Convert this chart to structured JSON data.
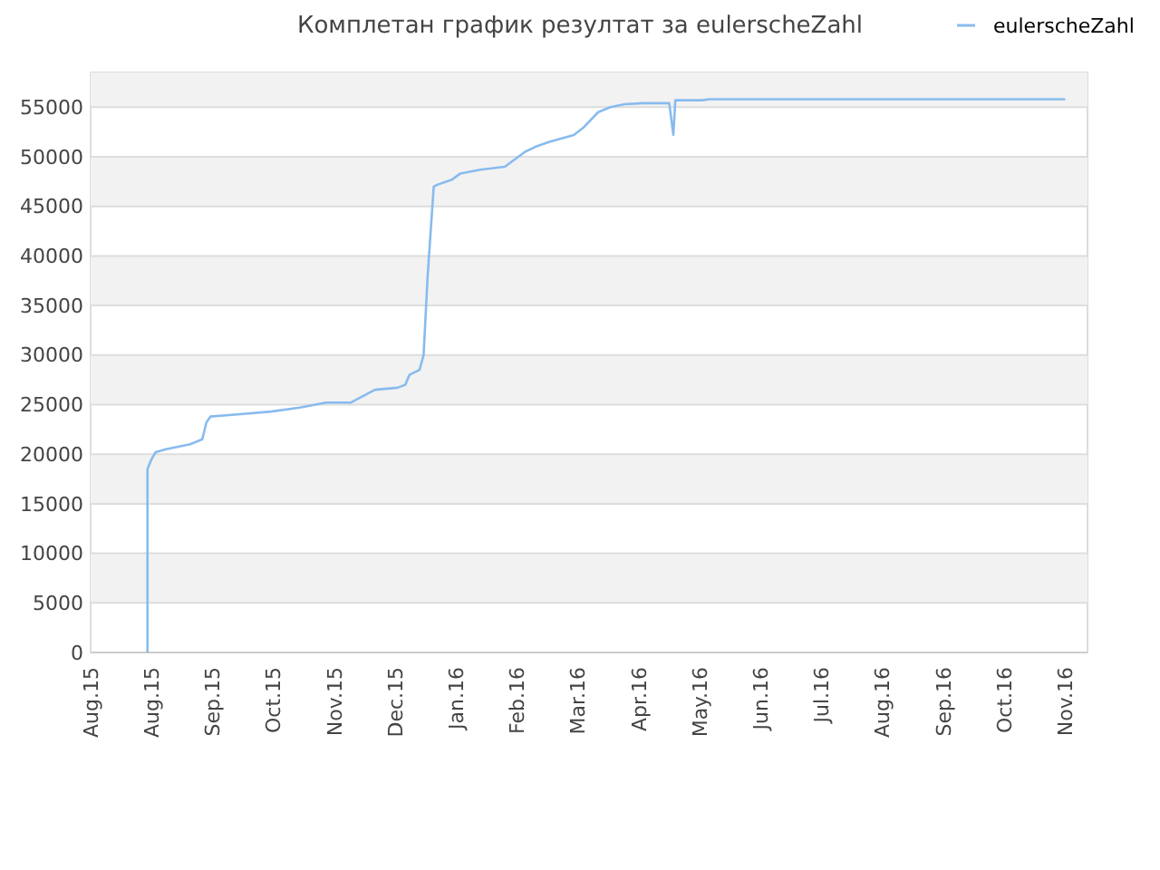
{
  "chart_data": {
    "type": "line",
    "title": "Комплетан график резултат за eulerscheZahl",
    "x": [
      "2015-08-29",
      "2015-08-29",
      "2015-08-31",
      "2015-09-02",
      "2015-09-07",
      "2015-09-19",
      "2015-09-25",
      "2015-09-27",
      "2015-09-29",
      "2015-10-11",
      "2015-10-29",
      "2015-11-12",
      "2015-11-25",
      "2015-12-07",
      "2015-12-19",
      "2015-12-30",
      "2016-01-03",
      "2016-01-05",
      "2016-01-10",
      "2016-01-12",
      "2016-01-14",
      "2016-01-17",
      "2016-01-19",
      "2016-01-26",
      "2016-01-30",
      "2016-02-09",
      "2016-02-21",
      "2016-03-02",
      "2016-03-07",
      "2016-03-14",
      "2016-03-26",
      "2016-03-31",
      "2016-04-07",
      "2016-04-13",
      "2016-04-20",
      "2016-04-29",
      "2016-05-12",
      "2016-05-14",
      "2016-05-15",
      "2016-05-17",
      "2016-05-18",
      "2016-05-19",
      "2016-05-28",
      "2016-06-01",
      "2016-11-23"
    ],
    "series": [
      {
        "name": "eulerscheZahl",
        "color": "#88bbee",
        "values": [
          0,
          18500,
          19500,
          20200,
          20500,
          21000,
          21500,
          23200,
          23800,
          24000,
          24300,
          24700,
          25200,
          25200,
          26500,
          26700,
          27000,
          28000,
          28500,
          30000,
          38000,
          47000,
          47200,
          47700,
          48300,
          48700,
          49000,
          50500,
          51000,
          51500,
          52200,
          53000,
          54500,
          55000,
          55300,
          55400,
          55400,
          52200,
          55700,
          55700,
          55700,
          55700,
          55700,
          55800,
          55800
        ]
      }
    ],
    "xlim": [
      "2015-08-01",
      "2016-12-04"
    ],
    "xticks": [
      {
        "value": "2015-08-01",
        "label": "Aug.15"
      },
      {
        "value": "2015-08-31",
        "label": "Aug.15"
      },
      {
        "value": "2015-09-30",
        "label": "Sep.15"
      },
      {
        "value": "2015-10-30",
        "label": "Oct.15"
      },
      {
        "value": "2015-11-29",
        "label": "Nov.15"
      },
      {
        "value": "2015-12-29",
        "label": "Dec.15"
      },
      {
        "value": "2016-01-28",
        "label": "Jan.16"
      },
      {
        "value": "2016-02-27",
        "label": "Feb.16"
      },
      {
        "value": "2016-03-28",
        "label": "Mar.16"
      },
      {
        "value": "2016-04-27",
        "label": "Apr.16"
      },
      {
        "value": "2016-05-27",
        "label": "May.16"
      },
      {
        "value": "2016-06-26",
        "label": "Jun.16"
      },
      {
        "value": "2016-07-26",
        "label": "Jul.16"
      },
      {
        "value": "2016-08-25",
        "label": "Aug.16"
      },
      {
        "value": "2016-09-24",
        "label": "Sep.16"
      },
      {
        "value": "2016-10-24",
        "label": "Oct.16"
      },
      {
        "value": "2016-11-23",
        "label": "Nov.16"
      }
    ],
    "ylim": [
      0,
      58500
    ],
    "yticks": [
      0,
      5000,
      10000,
      15000,
      20000,
      25000,
      30000,
      35000,
      40000,
      45000,
      50000,
      55000
    ],
    "grid": "y",
    "legend": "top right",
    "marker": "none",
    "line_style": "solid"
  }
}
